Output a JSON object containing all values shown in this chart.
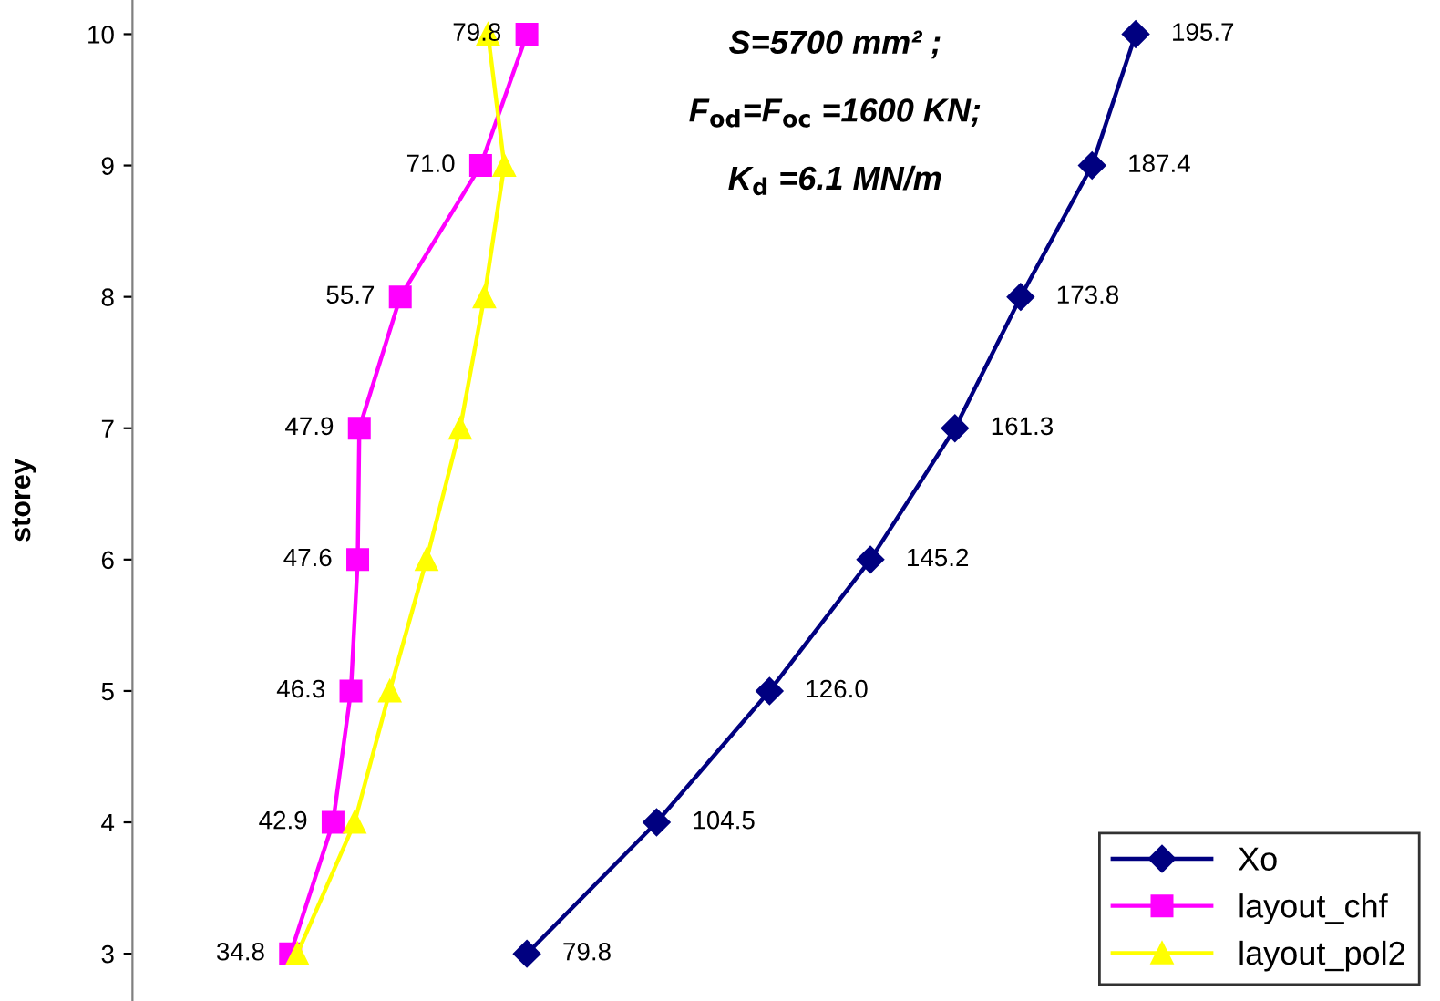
{
  "chart_data": {
    "type": "line",
    "orientation": "horizontal",
    "ylabel": "storey",
    "categories": [
      "10",
      "9",
      "8",
      "7",
      "6",
      "5",
      "4",
      "3"
    ],
    "tick_labels": "y",
    "grid": false,
    "legend": "bottom right",
    "annotations": [
      "S=5700 mm² ;",
      "F$_{od}$=F$_{oc}$ =1600 KN;",
      "K$_{d}$ =6.1 MN/m"
    ],
    "series": [
      {
        "name": "Xo",
        "color": "#000080",
        "marker": "diamond",
        "values": [
          195.7,
          187.4,
          173.8,
          161.3,
          145.2,
          126.0,
          104.5,
          79.8
        ],
        "value_labels": [
          "195.7",
          "187.4",
          "173.8",
          "161.3",
          "145.2",
          "126.0",
          "104.5",
          "79.8"
        ]
      },
      {
        "name": "layout_chf",
        "color": "#ff00ff",
        "marker": "square",
        "values": [
          79.8,
          71.0,
          55.7,
          47.9,
          47.6,
          46.3,
          42.9,
          34.8
        ],
        "value_labels": [
          "79.8",
          "71.0",
          "55.7",
          "47.9",
          "47.6",
          "46.3",
          "42.9",
          "34.8"
        ]
      },
      {
        "name": "layout_pol2",
        "color": "#ffff00",
        "marker": "triangle",
        "values": [
          72.4,
          75.5,
          71.7,
          67.1,
          60.7,
          53.7,
          47.0,
          36.1
        ]
      }
    ]
  }
}
